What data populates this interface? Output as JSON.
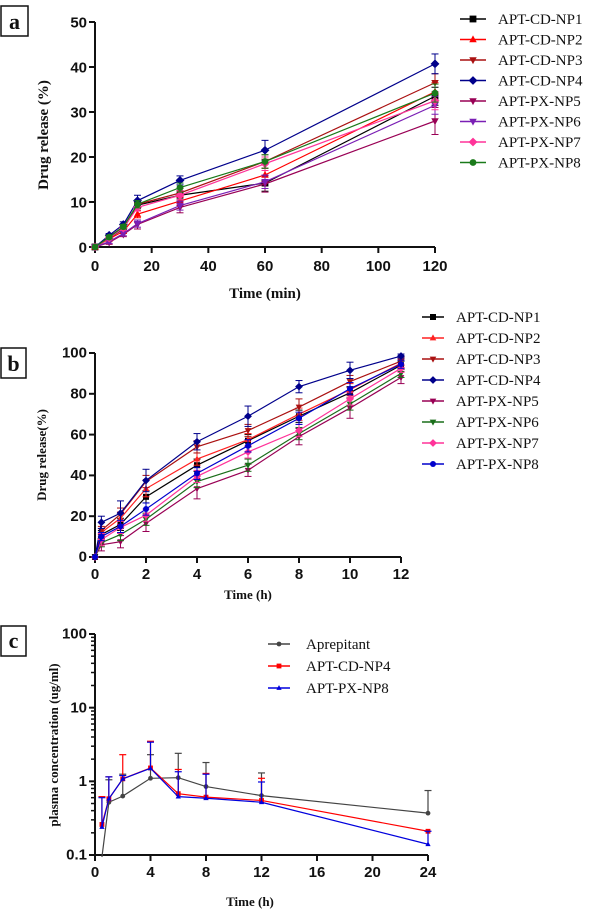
{
  "chart_data": [
    {
      "panel": "a",
      "type": "line",
      "title": "",
      "xlabel": "Time (min)",
      "ylabel": "Drug release (%)",
      "xlim": [
        0,
        120
      ],
      "ylim": [
        0,
        50
      ],
      "xticks": [
        0,
        20,
        40,
        60,
        80,
        100,
        120
      ],
      "yticks": [
        0,
        10,
        20,
        30,
        40,
        50
      ],
      "legend_position": "top-right-outside",
      "grid": false,
      "x": [
        0,
        5,
        10,
        15,
        30,
        60,
        120
      ],
      "series": [
        {
          "name": "APT-CD-NP1",
          "color": "#000000",
          "marker": "square",
          "values": [
            0,
            2.0,
            4.0,
            9.3,
            11.5,
            14.2,
            33.5
          ],
          "errors": [
            0,
            0.4,
            0.5,
            0.8,
            1.0,
            1.8,
            2.0
          ]
        },
        {
          "name": "APT-CD-NP2",
          "color": "#ff0000",
          "marker": "triangle-up",
          "values": [
            0,
            1.8,
            3.5,
            7.3,
            10.2,
            16.0,
            34.5
          ],
          "errors": [
            0,
            0.4,
            0.5,
            0.8,
            1.0,
            1.5,
            2.0
          ]
        },
        {
          "name": "APT-CD-NP3",
          "color": "#aa1111",
          "marker": "triangle-down",
          "values": [
            0,
            2.3,
            4.5,
            9.5,
            12.0,
            19.0,
            36.5
          ],
          "errors": [
            0,
            0.4,
            0.5,
            0.8,
            1.0,
            1.5,
            2.0
          ]
        },
        {
          "name": "APT-CD-NP4",
          "color": "#00008b",
          "marker": "diamond",
          "values": [
            0,
            2.6,
            5.0,
            10.3,
            14.8,
            21.5,
            40.7
          ],
          "errors": [
            0,
            0.4,
            0.6,
            1.2,
            1.0,
            2.2,
            2.2
          ]
        },
        {
          "name": "APT-PX-NP5",
          "color": "#990055",
          "marker": "triangle-down",
          "values": [
            0,
            1.0,
            2.8,
            5.0,
            8.8,
            14.0,
            28.0
          ],
          "errors": [
            0,
            0.4,
            0.5,
            1.0,
            1.2,
            1.8,
            3.0
          ]
        },
        {
          "name": "APT-PX-NP6",
          "color": "#7a1fb5",
          "marker": "triangle-down",
          "values": [
            0,
            1.2,
            3.0,
            5.2,
            9.2,
            14.5,
            31.5
          ],
          "errors": [
            0,
            0.4,
            0.5,
            0.8,
            1.0,
            1.5,
            2.0
          ]
        },
        {
          "name": "APT-PX-NP7",
          "color": "#ff3399",
          "marker": "diamond",
          "values": [
            0,
            2.0,
            4.2,
            8.8,
            11.5,
            18.5,
            32.5
          ],
          "errors": [
            0,
            0.4,
            0.5,
            0.8,
            1.0,
            1.5,
            2.0
          ]
        },
        {
          "name": "APT-PX-NP8",
          "color": "#1a7a1a",
          "marker": "circle",
          "values": [
            0,
            2.2,
            4.5,
            9.5,
            13.2,
            19.0,
            34.2
          ],
          "errors": [
            0,
            0.4,
            0.5,
            0.8,
            1.0,
            1.5,
            2.0
          ]
        }
      ]
    },
    {
      "panel": "b",
      "type": "line",
      "title": "",
      "xlabel": "Time (h)",
      "ylabel": "Drug release(%)",
      "xlim": [
        0,
        12
      ],
      "ylim": [
        0,
        100
      ],
      "xticks": [
        0,
        2,
        4,
        6,
        8,
        10,
        12
      ],
      "yticks": [
        0,
        20,
        40,
        60,
        80,
        100
      ],
      "legend_position": "top-right-outside",
      "grid": false,
      "x": [
        0,
        0.25,
        1,
        2,
        4,
        6,
        8,
        10,
        12
      ],
      "series": [
        {
          "name": "APT-CD-NP1",
          "color": "#000000",
          "marker": "square",
          "values": [
            0,
            11,
            16,
            29.5,
            45,
            57,
            69,
            80.5,
            94
          ],
          "errors": [
            0,
            2,
            3,
            3,
            3,
            3,
            3,
            3,
            2
          ]
        },
        {
          "name": "APT-CD-NP2",
          "color": "#ff2222",
          "marker": "triangle-up",
          "values": [
            0,
            12,
            19,
            33.5,
            48,
            57.5,
            70,
            82,
            95
          ],
          "errors": [
            0,
            2,
            3,
            4,
            3,
            3,
            3,
            3,
            2
          ]
        },
        {
          "name": "APT-CD-NP3",
          "color": "#aa1111",
          "marker": "triangle-down",
          "values": [
            0,
            13,
            21,
            37,
            54,
            62,
            73.5,
            86,
            96
          ],
          "errors": [
            0,
            2,
            3,
            3,
            3,
            3,
            4,
            3,
            2
          ]
        },
        {
          "name": "APT-CD-NP4",
          "color": "#00008b",
          "marker": "diamond",
          "values": [
            0,
            17,
            21.5,
            37.5,
            56.5,
            69,
            83.5,
            91.5,
            98.5
          ],
          "errors": [
            0,
            3,
            6,
            5.5,
            4,
            5,
            3,
            4,
            1
          ]
        },
        {
          "name": "APT-PX-NP5",
          "color": "#990055",
          "marker": "triangle-down",
          "values": [
            0,
            6,
            7.5,
            16.5,
            33.5,
            42.5,
            59,
            73,
            88
          ],
          "errors": [
            0,
            3,
            3,
            4,
            5,
            3,
            4,
            5,
            3
          ]
        },
        {
          "name": "APT-PX-NP6",
          "color": "#1a6e1a",
          "marker": "triangle-down",
          "values": [
            0,
            7,
            11,
            18.5,
            37,
            45,
            60.5,
            75,
            90
          ],
          "errors": [
            0,
            2,
            3,
            3,
            3,
            3,
            3,
            3,
            2
          ]
        },
        {
          "name": "APT-PX-NP7",
          "color": "#ff3399",
          "marker": "diamond",
          "values": [
            0,
            8.5,
            14.5,
            20.5,
            39.5,
            51.5,
            62,
            77.5,
            92.5
          ],
          "errors": [
            0,
            3,
            3,
            3,
            3,
            3,
            3,
            3,
            2
          ]
        },
        {
          "name": "APT-PX-NP8",
          "color": "#0000cc",
          "marker": "circle",
          "values": [
            0,
            10,
            15,
            23.5,
            41,
            54.5,
            68,
            82.5,
            94.5
          ],
          "errors": [
            0,
            2,
            3,
            3,
            3,
            3,
            3,
            3,
            2
          ]
        }
      ]
    },
    {
      "panel": "c",
      "type": "line",
      "title": "",
      "xlabel": "Time (h)",
      "ylabel": "plasma concentration (ug/ml)",
      "xlim": [
        0,
        24
      ],
      "ylim": [
        0.1,
        100
      ],
      "yscale": "log",
      "xticks": [
        0,
        4,
        8,
        12,
        16,
        20,
        24
      ],
      "yticks": [
        0.1,
        1,
        10,
        100
      ],
      "ytick_labels": [
        "0.1",
        "1",
        "10",
        "100"
      ],
      "legend_position": "top-center",
      "grid": false,
      "series": [
        {
          "name": "Aprepitant",
          "color": "#444444",
          "marker": "circle",
          "x": [
            0.5,
            1,
            2,
            4,
            6,
            8,
            12,
            24
          ],
          "values": [
            0.03,
            0.52,
            0.63,
            1.1,
            1.12,
            0.85,
            0.64,
            0.37
          ],
          "error_upper": [
            0,
            1.05,
            1.25,
            2.3,
            2.4,
            1.8,
            1.3,
            0.75
          ]
        },
        {
          "name": "APT-CD-NP4",
          "color": "#ff0000",
          "marker": "square",
          "x": [
            0.5,
            1,
            2,
            4,
            6,
            8,
            12,
            24
          ],
          "values": [
            0.26,
            0.58,
            1.08,
            1.52,
            0.68,
            0.61,
            0.55,
            0.21
          ],
          "error_upper": [
            0.62,
            1.15,
            2.3,
            3.5,
            1.45,
            1.28,
            1.1,
            0.21
          ]
        },
        {
          "name": "APT-PX-NP8",
          "color": "#0000dd",
          "marker": "triangle-up",
          "x": [
            0.5,
            1,
            2,
            4,
            6,
            8,
            12,
            24
          ],
          "values": [
            0.24,
            0.58,
            1.08,
            1.5,
            0.62,
            0.59,
            0.52,
            0.14
          ],
          "error_upper": [
            0.6,
            1.15,
            1.2,
            3.4,
            1.35,
            1.25,
            0.98,
            0.21
          ]
        }
      ]
    }
  ],
  "panels": {
    "a": {
      "label": "a"
    },
    "b": {
      "label": "b"
    },
    "c": {
      "label": "c"
    }
  }
}
